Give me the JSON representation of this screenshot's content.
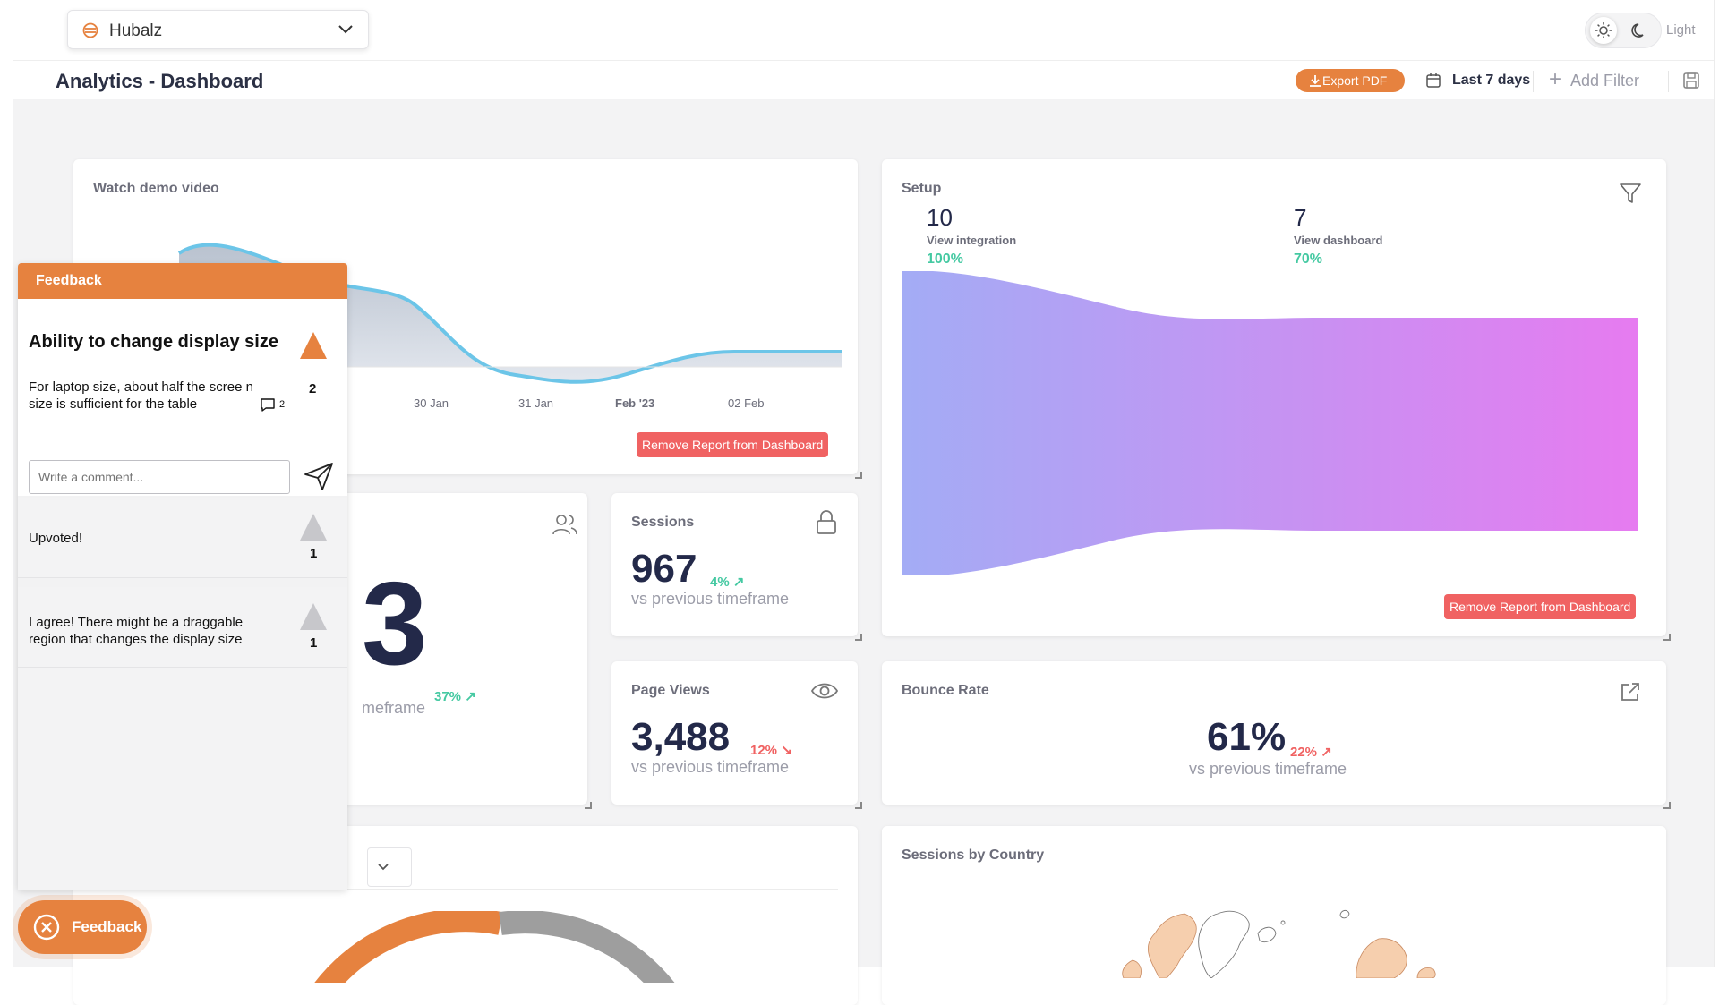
{
  "topbar": {
    "app_name": "Hubalz",
    "theme_label": "Light",
    "icons": [
      "hubalz-logo-icon",
      "chevron-down-icon",
      "sun-icon",
      "moon-icon"
    ]
  },
  "subbar": {
    "page_title": "Analytics - Dashboard",
    "export_label": "Export PDF",
    "date_range": "Last 7 days",
    "add_filter": "Add Filter",
    "icons": [
      "download-icon",
      "calendar-icon",
      "plus-icon",
      "save-icon"
    ]
  },
  "colors": {
    "accent": "#e6823f",
    "danger": "#f06262",
    "positive": "#45c9a2",
    "text_dark": "#232949",
    "muted": "#9b9ca8",
    "chart_line": "#6cc5e8"
  },
  "demo_card": {
    "title": "Watch demo video",
    "x_ticks": [
      "30 Jan",
      "31 Jan",
      "Feb '23",
      "02 Feb"
    ],
    "remove_label": "Remove Report from Dashboard"
  },
  "setup_card": {
    "title": "Setup",
    "step1": {
      "value": "10",
      "label": "View integration",
      "percent": "100%"
    },
    "step2": {
      "value": "7",
      "label": "View dashboard",
      "percent": "70%"
    },
    "remove_label": "Remove Report from Dashboard"
  },
  "visitors_card": {
    "value": "3",
    "delta": "37%",
    "sub": "meframe"
  },
  "sessions_card": {
    "title": "Sessions",
    "value": "967",
    "delta": "4%",
    "sub": "vs previous timeframe"
  },
  "pageviews_card": {
    "title": "Page Views",
    "value": "3,488",
    "delta": "12%",
    "sub": "vs previous timeframe"
  },
  "bounce_card": {
    "title": "Bounce Rate",
    "value": "61%",
    "delta": "22%",
    "sub": "vs previous timeframe"
  },
  "country_card": {
    "title": "Sessions by Country"
  },
  "feedback": {
    "header": "Feedback",
    "title": "Ability to change display size",
    "description": "For laptop size, about half the scree n size is sufficient for the table",
    "votes": "2",
    "comments_count": "2",
    "comment_placeholder": "Write a comment...",
    "comments": [
      {
        "text": "Upvoted!",
        "votes": "1"
      },
      {
        "text": "I agree! There might be a draggable region that changes the display size",
        "votes": "1"
      }
    ],
    "float_label": "Feedback"
  }
}
